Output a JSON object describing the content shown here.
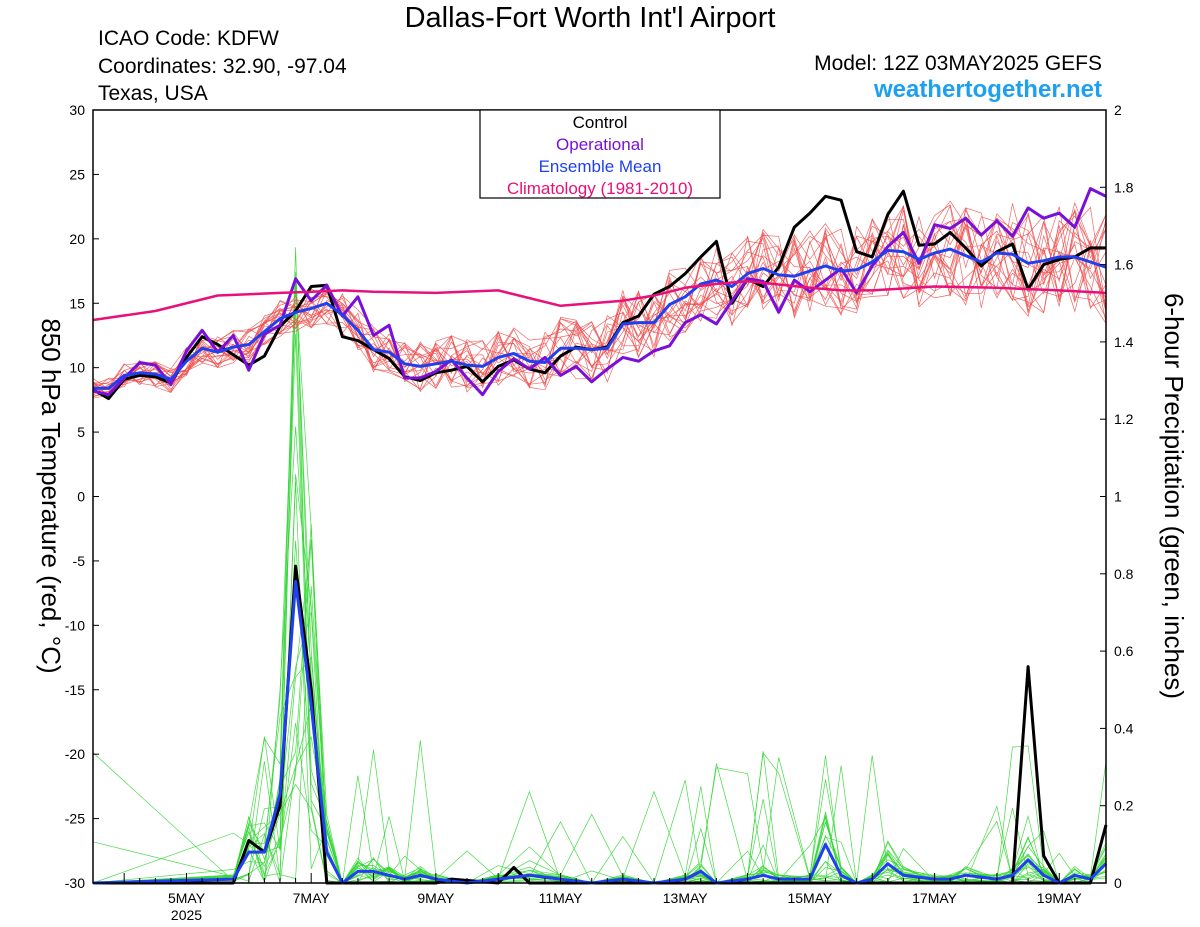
{
  "header": {
    "title": "Dallas-Fort Worth Int'l Airport",
    "icao": "ICAO Code: KDFW",
    "coordinates": "Coordinates: 32.90, -97.04",
    "region": "Texas, USA",
    "model": "Model: 12Z 03MAY2025 GEFS",
    "site": "weathertogether.net"
  },
  "colors": {
    "control": "#000000",
    "operational": "#7a10d8",
    "ensemble_mean": "#2040f0",
    "climatology": "#e8107a",
    "members_temp": "#ee4b4b",
    "members_precip": "#33d633",
    "site": "#1ea0f0"
  },
  "chart_data": {
    "type": "line",
    "y_left_label": "850 hPa Temperature (red, °C)",
    "y_right_label": "6-hour Precipitation (green, inches)",
    "y_left_lim": [
      -30,
      30
    ],
    "y_left_ticks": [
      "30",
      "25",
      "20",
      "15",
      "10",
      "5",
      "0",
      "-5",
      "-10",
      "-15",
      "-20",
      "-25",
      "-30"
    ],
    "y_right_lim": [
      0,
      2
    ],
    "y_right_ticks": [
      "2",
      "1.8",
      "1.6",
      "1.4",
      "1.2",
      "1",
      "0.8",
      "0.6",
      "0.4",
      "0.2",
      "0"
    ],
    "x_lim": [
      3.5,
      19.75
    ],
    "x_ticks": [
      {
        "day": 5,
        "label": "5MAY",
        "sub": "2025"
      },
      {
        "day": 7,
        "label": "7MAY"
      },
      {
        "day": 9,
        "label": "9MAY"
      },
      {
        "day": 11,
        "label": "11MAY"
      },
      {
        "day": 13,
        "label": "13MAY"
      },
      {
        "day": 15,
        "label": "15MAY"
      },
      {
        "day": 17,
        "label": "17MAY"
      },
      {
        "day": 19,
        "label": "19MAY"
      }
    ],
    "legend": {
      "items": [
        "Control",
        "Operational",
        "Ensemble Mean",
        "Climatology (1981-2010)"
      ],
      "placement": "top-center"
    },
    "series": [
      {
        "name": "Control",
        "kind": "temp",
        "color": "#000000",
        "x": [
          3.5,
          3.75,
          4,
          4.25,
          4.5,
          4.75,
          5,
          5.25,
          5.5,
          5.75,
          6,
          6.25,
          6.5,
          6.75,
          7,
          7.25,
          7.5,
          7.75,
          8,
          8.25,
          8.5,
          8.75,
          9,
          9.25,
          9.5,
          9.75,
          10,
          10.25,
          10.5,
          10.75,
          11,
          11.25,
          11.5,
          11.75,
          12,
          12.25,
          12.5,
          12.75,
          13,
          13.25,
          13.5,
          13.75,
          14,
          14.25,
          14.5,
          14.75,
          15,
          15.25,
          15.5,
          15.75,
          16,
          16.25,
          16.5,
          16.75,
          17,
          17.25,
          17.5,
          17.75,
          18,
          18.25,
          18.5,
          18.75,
          19,
          19.25,
          19.5,
          19.75
        ],
        "y": [
          8.3,
          7.6,
          9.1,
          9.4,
          9.3,
          8.8,
          10.8,
          12.4,
          11.8,
          11,
          10.2,
          10.9,
          13.2,
          14.4,
          16.3,
          16.4,
          12.4,
          12.1,
          11.4,
          10.7,
          9.3,
          9,
          9.6,
          9.8,
          10.1,
          8.9,
          10.1,
          10.6,
          9.9,
          9.6,
          10.9,
          11.6,
          11.4,
          11.6,
          13.5,
          14,
          15.7,
          16.3,
          17.3,
          18.6,
          19.8,
          15,
          16.9,
          16.3,
          17.8,
          20.9,
          22,
          23.3,
          23,
          19,
          18.6,
          21.9,
          23.7,
          19.5,
          19.6,
          20.5,
          19.3,
          17.9,
          19,
          19.6,
          16.1,
          18,
          18.4,
          18.6,
          19.3,
          19.3
        ]
      },
      {
        "name": "Operational",
        "kind": "temp",
        "color": "#7a10d8",
        "x": [
          3.5,
          3.75,
          4,
          4.25,
          4.5,
          4.75,
          5,
          5.25,
          5.5,
          5.75,
          6,
          6.25,
          6.5,
          6.75,
          7,
          7.25,
          7.5,
          7.75,
          8,
          8.25,
          8.5,
          8.75,
          9,
          9.25,
          9.5,
          9.75,
          10,
          10.25,
          10.5,
          10.75,
          11,
          11.25,
          11.5,
          11.75,
          12,
          12.25,
          12.5,
          12.75,
          13,
          13.25,
          13.5,
          13.75,
          14,
          14.25,
          14.5,
          14.75,
          15,
          15.25,
          15.5,
          15.75,
          16,
          16.25,
          16.5,
          16.75,
          17,
          17.25,
          17.5,
          17.75,
          18,
          18.25,
          18.5,
          18.75,
          19,
          19.25,
          19.5,
          19.75
        ],
        "y": [
          8.2,
          7.9,
          9.2,
          10.4,
          10.2,
          8.7,
          11.3,
          12.9,
          11.2,
          12.5,
          9.8,
          12.6,
          13.3,
          16.9,
          15.2,
          16.4,
          14,
          15.5,
          12.5,
          13.3,
          9.2,
          9.2,
          9.7,
          10.6,
          9.2,
          7.9,
          9.7,
          10.7,
          9.9,
          10.8,
          9.4,
          10.1,
          8.9,
          9.9,
          10.8,
          10.5,
          11.3,
          11.7,
          13.5,
          14.1,
          13.4,
          15.2,
          16.9,
          16.7,
          14.3,
          16.8,
          15.9,
          16.8,
          17.7,
          15.8,
          17.9,
          19.4,
          20.5,
          18.1,
          21.1,
          20.8,
          21.6,
          20.3,
          21.4,
          20.2,
          22.4,
          21.6,
          22,
          20.9,
          23.9,
          23.3
        ]
      },
      {
        "name": "Ensemble Mean",
        "kind": "temp",
        "color": "#2040f0",
        "x": [
          3.5,
          3.75,
          4,
          4.25,
          4.5,
          4.75,
          5,
          5.25,
          5.5,
          5.75,
          6,
          6.25,
          6.5,
          6.75,
          7,
          7.25,
          7.5,
          7.75,
          8,
          8.25,
          8.5,
          8.75,
          9,
          9.25,
          9.5,
          9.75,
          10,
          10.25,
          10.5,
          10.75,
          11,
          11.25,
          11.5,
          11.75,
          12,
          12.25,
          12.5,
          12.75,
          13,
          13.25,
          13.5,
          13.75,
          14,
          14.25,
          14.5,
          14.75,
          15,
          15.25,
          15.5,
          15.75,
          16,
          16.25,
          16.5,
          16.75,
          17,
          17.25,
          17.5,
          17.75,
          18,
          18.25,
          18.5,
          18.75,
          19,
          19.25,
          19.5,
          19.75
        ],
        "y": [
          8.4,
          8.4,
          9.4,
          9.6,
          9.5,
          9.1,
          10.5,
          11.5,
          11.2,
          11.6,
          11.8,
          12.8,
          13.8,
          14.3,
          14.6,
          15,
          14.1,
          12.9,
          11.4,
          11.2,
          10.3,
          10.1,
          10.3,
          10.5,
          10.2,
          10.1,
          10.8,
          11.1,
          10.5,
          10.4,
          11.5,
          11.5,
          11.4,
          11.5,
          13.4,
          13.5,
          13.5,
          14.9,
          15.5,
          16.5,
          16.8,
          16.3,
          17.3,
          17.7,
          17.2,
          17.1,
          17.5,
          17.9,
          17.5,
          17.6,
          18.2,
          19.1,
          19,
          18.4,
          18.9,
          19.2,
          18.7,
          18.2,
          18.9,
          18.8,
          18.1,
          18.3,
          18.6,
          18.6,
          18.2,
          17.8
        ]
      },
      {
        "name": "Climatology (1981-2010)",
        "kind": "temp",
        "color": "#e8107a",
        "x": [
          3.5,
          4.5,
          5.5,
          6.5,
          7,
          7.5,
          8,
          9,
          10,
          10.5,
          11,
          12,
          12.5,
          13,
          13.5,
          14,
          15,
          15.5,
          16,
          17,
          18,
          19,
          19.75
        ],
        "y": [
          13.7,
          14.4,
          15.6,
          15.8,
          15.9,
          16,
          15.9,
          15.8,
          16,
          15.4,
          14.8,
          15.2,
          15.6,
          16.2,
          16.5,
          16.7,
          16.2,
          16,
          16,
          16.3,
          16.2,
          16,
          15.8
        ]
      },
      {
        "name": "Control",
        "kind": "precip",
        "color": "#000000",
        "x": [
          3.5,
          5.75,
          6,
          6.25,
          6.5,
          6.75,
          7,
          7.25,
          7.5,
          7.75,
          9,
          9.25,
          10,
          10.25,
          10.5,
          19.25,
          18.25,
          18.5,
          18.75,
          19,
          19.5,
          19.75
        ],
        "y": [
          0,
          0,
          0.11,
          0.08,
          0.2,
          0.82,
          0.5,
          0,
          0,
          0,
          0,
          0.01,
          0,
          0.04,
          0,
          0,
          0,
          0.56,
          0.07,
          0,
          0,
          0.15
        ]
      },
      {
        "name": "Ensemble Mean",
        "kind": "precip",
        "color": "#2040f0",
        "x": [
          3.5,
          5.75,
          6,
          6.25,
          6.5,
          6.75,
          7,
          7.25,
          7.5,
          7.75,
          8,
          8.25,
          8.5,
          8.75,
          9,
          9.5,
          10,
          10.5,
          11,
          11.5,
          12,
          12.5,
          13,
          13.25,
          13.5,
          14,
          14.25,
          14.5,
          15,
          15.25,
          15.5,
          15.75,
          16,
          16.25,
          16.5,
          17,
          17.25,
          17.5,
          18,
          18.25,
          18.5,
          18.75,
          19,
          19.25,
          19.5,
          19.75
        ],
        "y": [
          0,
          0.01,
          0.08,
          0.08,
          0.23,
          0.78,
          0.46,
          0.08,
          0,
          0.03,
          0.03,
          0.02,
          0.01,
          0.02,
          0.01,
          0,
          0.01,
          0.02,
          0.01,
          0,
          0.01,
          0,
          0.01,
          0.03,
          0,
          0.01,
          0.02,
          0.01,
          0.01,
          0.1,
          0.02,
          0,
          0.01,
          0.05,
          0.02,
          0.01,
          0.01,
          0.02,
          0.01,
          0.02,
          0.06,
          0.02,
          0,
          0.02,
          0.01,
          0.05
        ]
      }
    ]
  }
}
